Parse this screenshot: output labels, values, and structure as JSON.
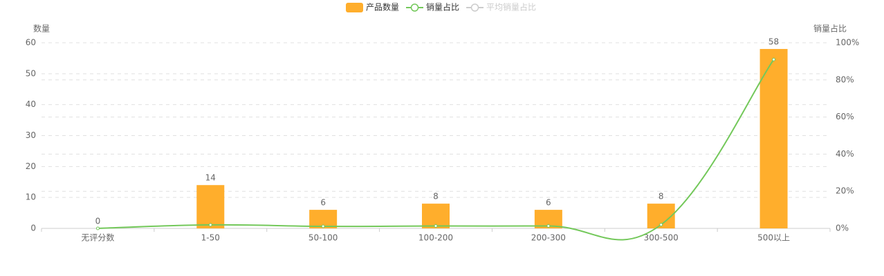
{
  "chart_data": {
    "type": "bar",
    "y_axis_label": "数量",
    "y2_axis_label": "销量占比",
    "categories": [
      "无评分数",
      "1-50",
      "50-100",
      "100-200",
      "200-300",
      "300-500",
      "500以上"
    ],
    "series": [
      {
        "name": "产品数量",
        "type": "bar",
        "color": "#ffae2c",
        "values": [
          0,
          14,
          6,
          8,
          6,
          8,
          58
        ]
      },
      {
        "name": "销量占比",
        "type": "line",
        "axis": "y2",
        "color": "#73c85a",
        "values": [
          0,
          1.9,
          1.1,
          1.3,
          1.3,
          2,
          91
        ]
      },
      {
        "name": "平均销量占比",
        "type": "line",
        "axis": "y2",
        "color": "#cccccc",
        "hidden": true
      }
    ],
    "ylim": [
      0,
      60
    ],
    "yticks": [
      0,
      10,
      20,
      30,
      40,
      50,
      60
    ],
    "y2lim": [
      0,
      100
    ],
    "y2ticks": [
      {
        "value": 0,
        "label": "0%"
      },
      {
        "value": 20,
        "label": "20%"
      },
      {
        "value": 40,
        "label": "40%"
      },
      {
        "value": 60,
        "label": "60%"
      },
      {
        "value": 80,
        "label": "80%"
      },
      {
        "value": 100,
        "label": "100%"
      }
    ],
    "grid": true
  }
}
